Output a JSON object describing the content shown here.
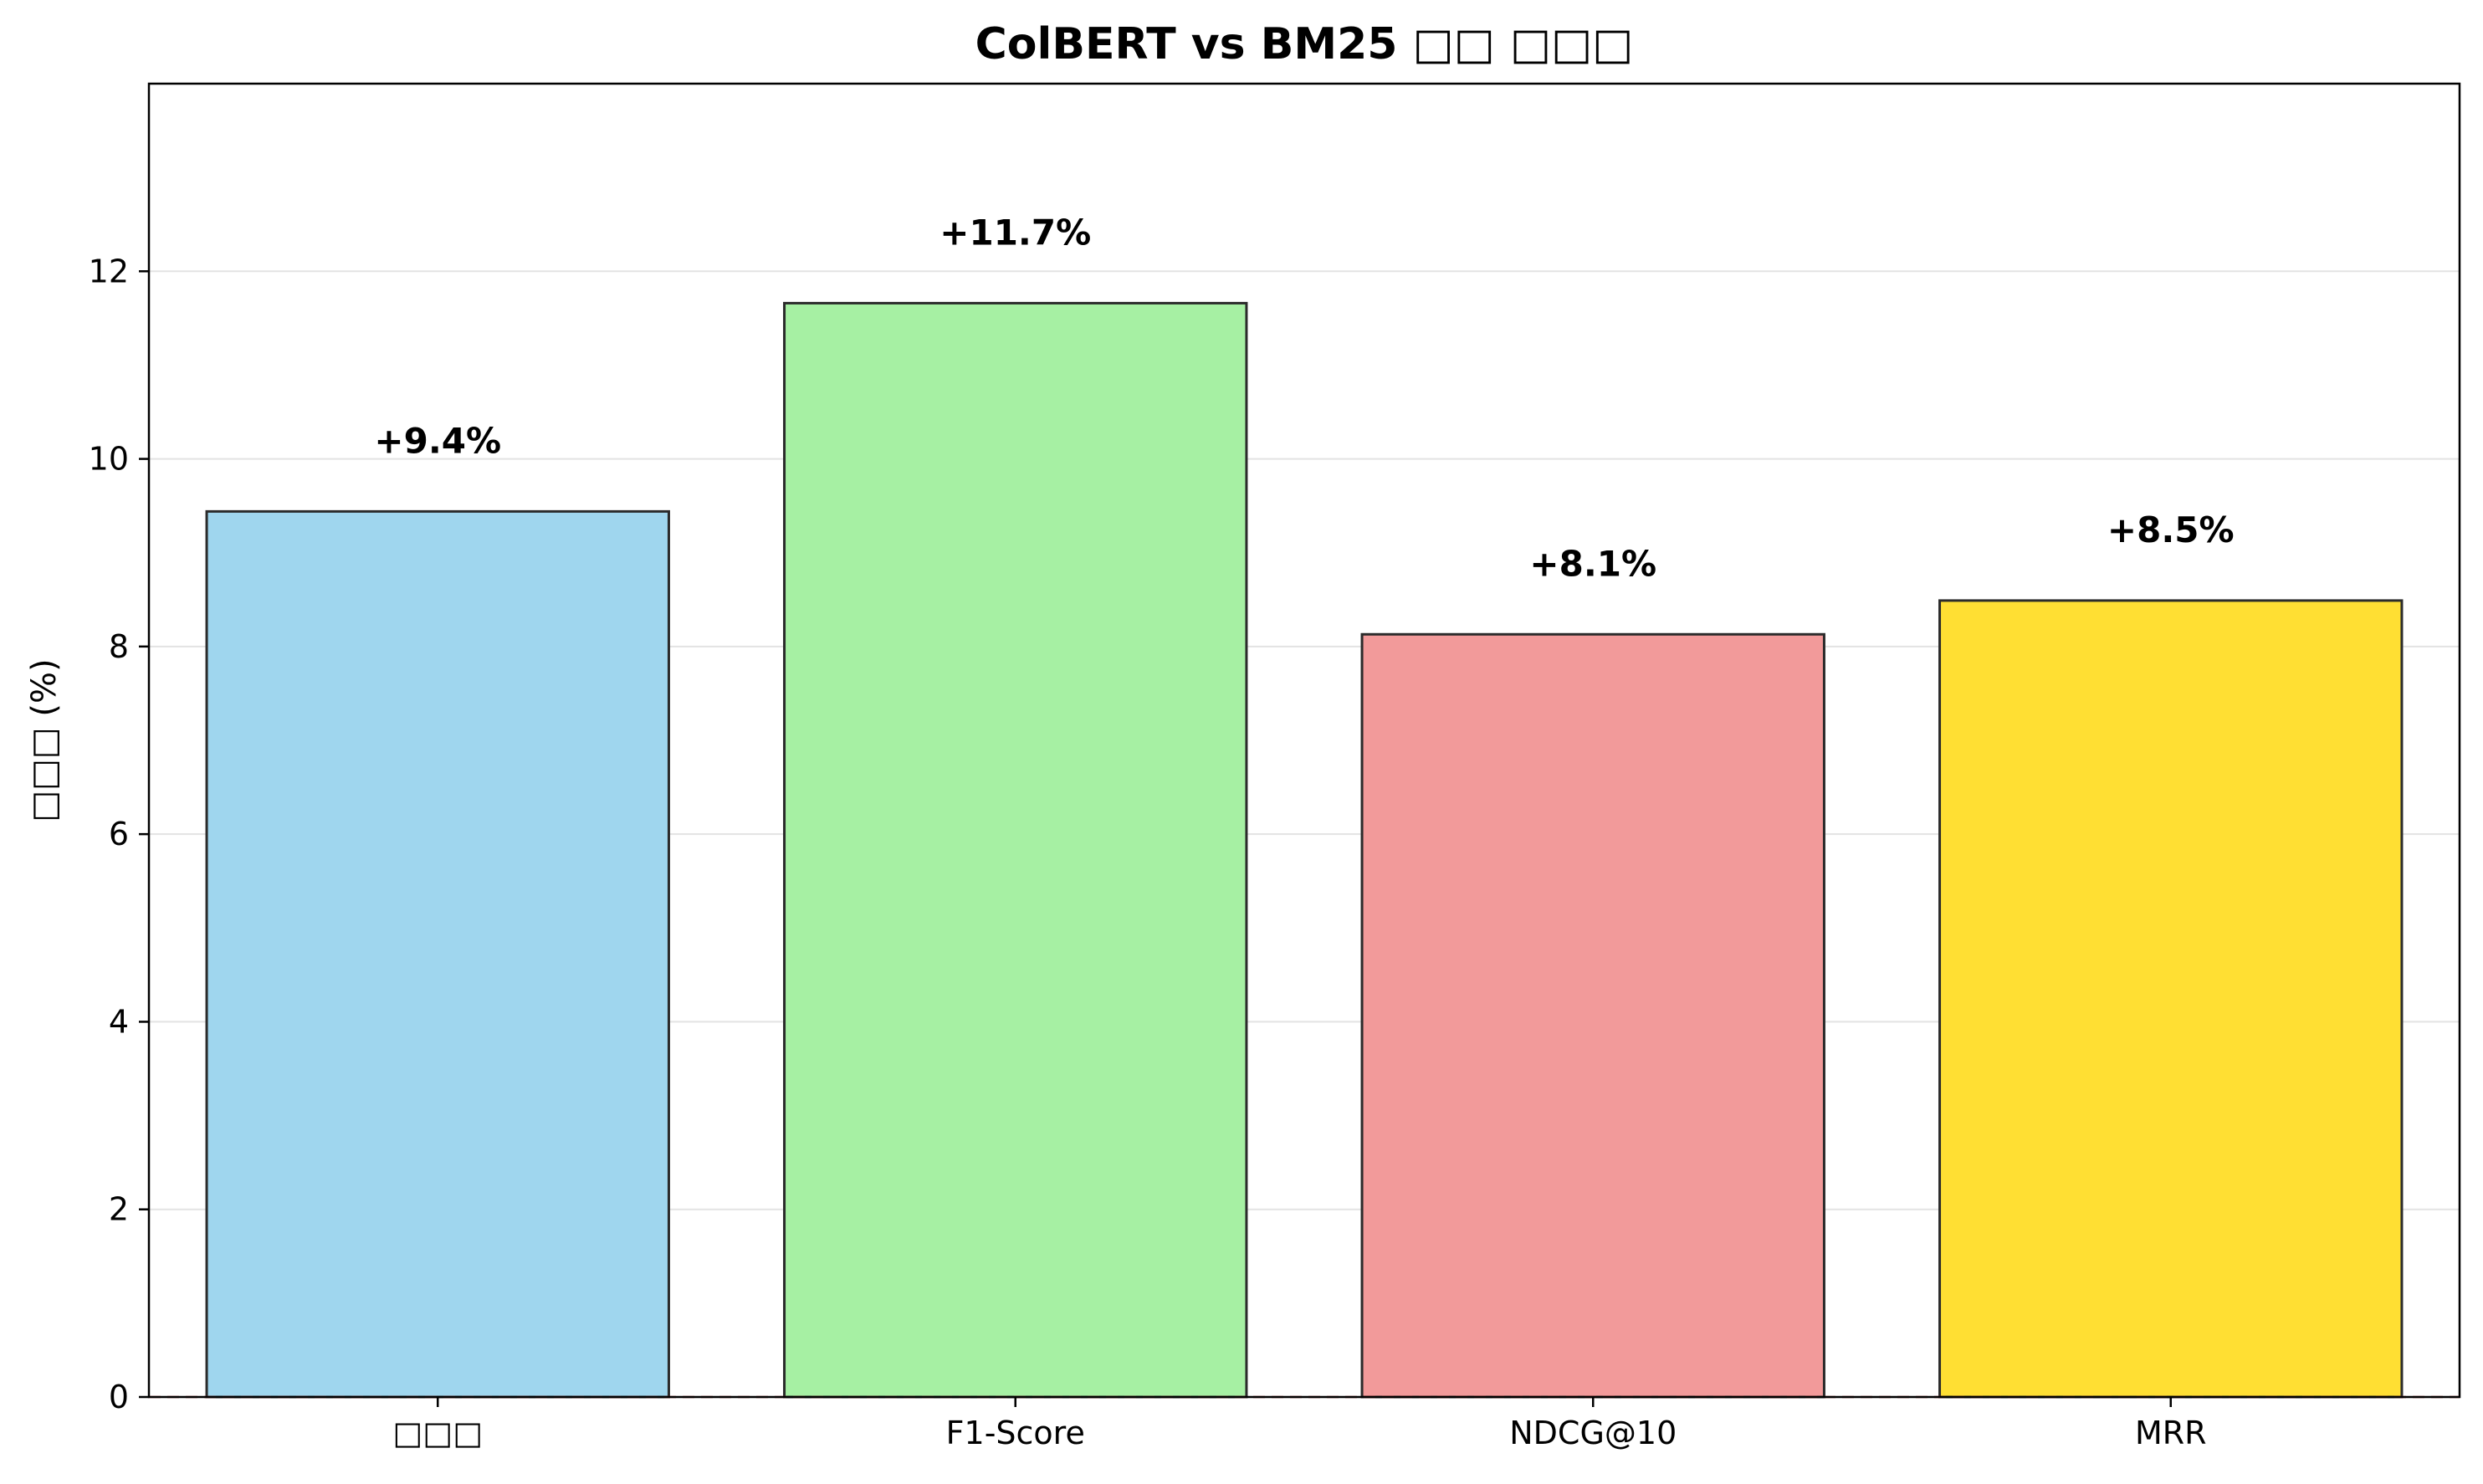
{
  "chart_data": {
    "type": "bar",
    "title": "ColBERT vs BM25 □□ □□□",
    "xlabel": "",
    "ylabel": "□□□ (%)",
    "categories": [
      "□□□",
      "F1-Score",
      "NDCG@10",
      "MRR"
    ],
    "values": [
      9.44,
      11.66,
      8.13,
      8.49
    ],
    "value_labels": [
      "+9.4%",
      "+11.7%",
      "+8.1%",
      "+8.5%"
    ],
    "colors": [
      "#9fd6ee",
      "#a6f0a3",
      "#f29a9a",
      "#ffdf33"
    ],
    "ylim": [
      0,
      14
    ],
    "yticks": [
      0,
      2,
      4,
      6,
      8,
      10,
      12
    ],
    "grid": "y",
    "reference_line": {
      "value": 0,
      "color": "#cc3333",
      "style": "dashed"
    },
    "legend": "none"
  }
}
